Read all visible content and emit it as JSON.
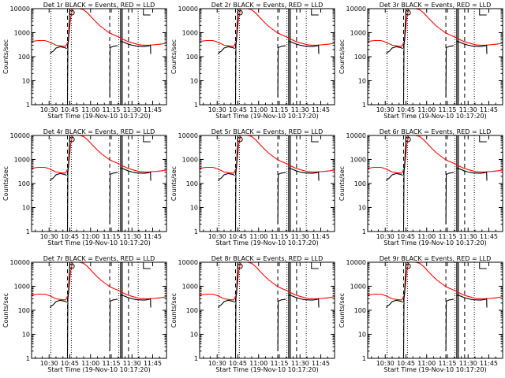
{
  "chart_data": {
    "type": "line",
    "panels": [
      {
        "title": "Det 1r BLACK = Events, RED = LLD"
      },
      {
        "title": "Det 2r BLACK = Events, RED = LLD"
      },
      {
        "title": "Det 3r BLACK = Events, RED = LLD"
      },
      {
        "title": "Det 4r BLACK = Events, RED = LLD"
      },
      {
        "title": "Det 5r BLACK = Events, RED = LLD"
      },
      {
        "title": "Det 6r BLACK = Events, RED = LLD"
      },
      {
        "title": "Det 7r BLACK = Events, RED = LLD"
      },
      {
        "title": "Det 8r BLACK = Events, RED = LLD"
      },
      {
        "title": "Det 9r BLACK = Events, RED = LLD"
      }
    ],
    "xlabel": "Start Time (19-Nov-10 10:17:20)",
    "ylabel": "Counts/sec",
    "x_tick_labels": [
      "10:30",
      "10:45",
      "11:00",
      "11:15",
      "11:30",
      "11:45"
    ],
    "x_tick_minutes": [
      30,
      45,
      60,
      75,
      90,
      105
    ],
    "xlim_minutes": [
      17.3,
      115
    ],
    "y_tick_labels": [
      "1",
      "10",
      "100",
      "1000",
      "10000"
    ],
    "y_tick_values": [
      1,
      10,
      100,
      1000,
      10000
    ],
    "ylim": [
      1,
      10000
    ],
    "y_scale": "log",
    "dotted_vlines_minutes": [
      31.3,
      46.1,
      80.5,
      94.5
    ],
    "dashed_vlines_minutes": [
      43.3,
      73.9,
      87.5
    ],
    "solid_vlines_minutes": [
      81.8,
      82.9
    ],
    "series": [
      {
        "name": "LLD",
        "color": "#ff0000",
        "x": [
          17.3,
          22,
          27,
          31,
          35,
          39,
          42,
          44,
          45.5,
          47,
          49,
          52,
          55,
          58,
          61,
          64,
          67,
          70,
          73,
          76,
          79,
          81,
          84,
          87,
          90,
          93,
          96,
          99,
          102,
          105,
          108,
          112,
          115
        ],
        "y": [
          430,
          470,
          470,
          390,
          300,
          280,
          270,
          450,
          4000,
          10000,
          10000,
          10000,
          9000,
          6500,
          4200,
          2800,
          1900,
          1400,
          1050,
          850,
          720,
          640,
          520,
          430,
          380,
          340,
          310,
          300,
          300,
          310,
          320,
          340,
          370
        ]
      },
      {
        "name": "Events",
        "color": "#000000",
        "segments": [
          {
            "x": [
              30.8,
              31.2,
              33,
              35,
              38,
              41,
              42.8
            ],
            "y": [
              130,
              145,
              170,
              230,
              260,
              240,
              220
            ]
          },
          {
            "x": [
              43.3,
              43.6,
              44,
              45,
              46,
              47.5,
              49,
              51
            ],
            "y": [
              1,
              300,
              500,
              10000,
              10000,
              10000,
              10000,
              10000
            ]
          },
          {
            "x": [
              73.9,
              74.2,
              75,
              76.5,
              78,
              79.6
            ],
            "y": [
              2,
              240,
              250,
              270,
              280,
              290
            ]
          },
          {
            "x": [
              81.6,
              82.2,
              83.5,
              85,
              87,
              90,
              93,
              96,
              99,
              102,
              103.4,
              103.6
            ],
            "y": [
              380,
              440,
              410,
              380,
              340,
              300,
              280,
              270,
              265,
              280,
              300,
              130
            ]
          }
        ]
      }
    ]
  }
}
